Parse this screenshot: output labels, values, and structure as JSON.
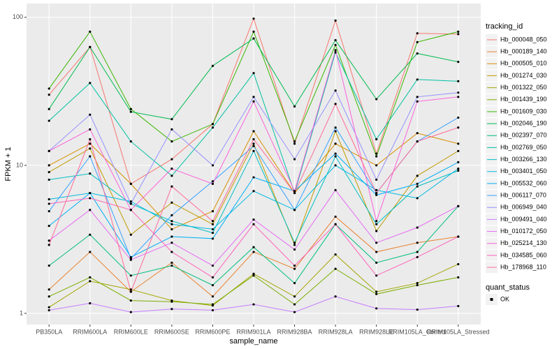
{
  "chart_data": {
    "type": "line",
    "x_label": "sample_name",
    "y_label": "FPKM + 1",
    "log_y": true,
    "grid": true,
    "legend_title": "tracking_id",
    "point_legend": {
      "title": "quant_status",
      "labels": [
        "OK"
      ],
      "color": "#000000"
    },
    "categories": [
      "PB350LA",
      "RRIM600LA",
      "RRIM600LE",
      "RRIM600SE",
      "RRIM600PE",
      "RRIM901LA",
      "RRIM928BA",
      "RRIM928LA",
      "RRIM928LE",
      "RRIM105LA_Control",
      "RRIM105LA_Stressed"
    ],
    "ylim": [
      0.84,
      124
    ],
    "yticks": [
      1,
      10,
      100
    ],
    "series": [
      {
        "name": "Hb_000048_050",
        "color": "#F8766D",
        "values": [
          30,
          63,
          7.5,
          11,
          19,
          98,
          14,
          95,
          12,
          78,
          77
        ]
      },
      {
        "name": "Hb_000189_140",
        "color": "#EA8331",
        "values": [
          1.45,
          2.6,
          1.4,
          2.2,
          1.3,
          2.6,
          2.0,
          4.5,
          2.6,
          3.0,
          3.3
        ]
      },
      {
        "name": "Hb_000505_010",
        "color": "#D89000",
        "values": [
          10,
          14,
          7.5,
          3.7,
          4.9,
          17,
          6.5,
          14,
          10,
          16.5,
          14
        ]
      },
      {
        "name": "Hb_001274_030",
        "color": "#C09B00",
        "values": [
          9,
          13,
          3.4,
          5.6,
          4.0,
          14,
          2.9,
          17,
          3.6,
          8.5,
          12.5
        ]
      },
      {
        "name": "Hb_001322_050",
        "color": "#A3A500",
        "values": [
          1.1,
          1.65,
          1.45,
          1.22,
          1.13,
          1.85,
          1.3,
          2.5,
          1.4,
          1.6,
          2.15
        ]
      },
      {
        "name": "Hb_001439_190",
        "color": "#7CAE00",
        "values": [
          1.3,
          1.75,
          1.22,
          1.2,
          1.15,
          1.8,
          1.15,
          2.0,
          1.35,
          1.55,
          1.75
        ]
      },
      {
        "name": "Hb_001609_030",
        "color": "#39B600",
        "values": [
          33,
          80,
          24,
          14.5,
          19,
          80,
          14.5,
          65,
          11.5,
          68,
          80
        ]
      },
      {
        "name": "Hb_002046_190",
        "color": "#00BB4E",
        "values": [
          24,
          63,
          23,
          20.5,
          47,
          72,
          25,
          70,
          28,
          57,
          50
        ]
      },
      {
        "name": "Hb_002397_070",
        "color": "#00BF7D",
        "values": [
          2.1,
          3.4,
          1.8,
          2.1,
          1.55,
          2.8,
          1.6,
          4.0,
          2.2,
          2.6,
          5.3
        ]
      },
      {
        "name": "Hb_002769_050",
        "color": "#00C1A3",
        "values": [
          20,
          36,
          14.5,
          8.5,
          18,
          42,
          6.5,
          58,
          15,
          38,
          37
        ]
      },
      {
        "name": "Hb_003266_130",
        "color": "#00BFC4",
        "values": [
          8,
          8.8,
          5.5,
          4.2,
          3.5,
          12.5,
          3.0,
          11.5,
          4.0,
          7.2,
          9.2
        ]
      },
      {
        "name": "Hb_003401_050",
        "color": "#00BAE0",
        "values": [
          5.9,
          6.5,
          5.7,
          4.0,
          3.7,
          6.7,
          5.0,
          10,
          6.8,
          6.0,
          9.5
        ]
      },
      {
        "name": "Hb_005532_060",
        "color": "#00B0F6",
        "values": [
          3.9,
          6.5,
          2.4,
          3.3,
          3.2,
          8.3,
          6.7,
          12,
          6.3,
          7.5,
          10.5
        ]
      },
      {
        "name": "Hb_006117_070",
        "color": "#35A2FF",
        "values": [
          4.9,
          11.5,
          2.35,
          4.6,
          7.8,
          13.5,
          5.0,
          18,
          6.5,
          14.5,
          21
        ]
      },
      {
        "name": "Hb_006949_040",
        "color": "#9590FF",
        "values": [
          12.5,
          22,
          5.5,
          17.5,
          10,
          29,
          11,
          32,
          8,
          29,
          31
        ]
      },
      {
        "name": "Hb_009491_040",
        "color": "#C77CFF",
        "values": [
          1.05,
          1.17,
          1.02,
          1.07,
          1.05,
          1.15,
          1.02,
          1.3,
          1.08,
          1.06,
          1.12
        ]
      },
      {
        "name": "Hb_010172_050",
        "color": "#E76BF3",
        "values": [
          3.1,
          5.0,
          2.3,
          3.0,
          2.1,
          4.3,
          2.7,
          6.8,
          3.0,
          3.8,
          5.3
        ]
      },
      {
        "name": "Hb_025214_130",
        "color": "#FA62DB",
        "values": [
          12.5,
          17.5,
          5.0,
          9.5,
          7.5,
          27,
          6.7,
          60,
          4.2,
          27,
          29
        ]
      },
      {
        "name": "Hb_034585_060",
        "color": "#FF62BC",
        "values": [
          5.5,
          6.0,
          5.0,
          2.6,
          1.75,
          4.0,
          2.1,
          4.0,
          1.8,
          2.4,
          3.3
        ]
      },
      {
        "name": "Hb_178968_110",
        "color": "#FF6A98",
        "values": [
          2.9,
          15,
          1.4,
          7.2,
          4.2,
          15,
          6.5,
          26,
          6.5,
          14.5,
          18
        ]
      }
    ]
  }
}
